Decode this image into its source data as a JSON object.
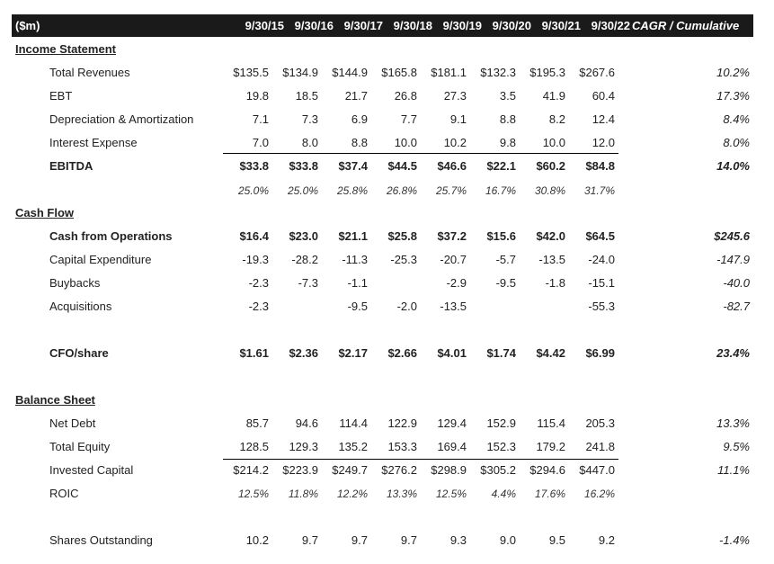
{
  "header": {
    "unit": "($m)",
    "years": [
      "9/30/15",
      "9/30/16",
      "9/30/17",
      "9/30/18",
      "9/30/19",
      "9/30/20",
      "9/30/21",
      "9/30/22"
    ],
    "cagr": "CAGR / Cumulative"
  },
  "rows": [
    {
      "type": "section",
      "label": "Income Statement"
    },
    {
      "label": "Total Revenues",
      "values": [
        "$135.5",
        "$134.9",
        "$144.9",
        "$165.8",
        "$181.1",
        "$132.3",
        "$195.3",
        "$267.6"
      ],
      "cagr": "10.2%"
    },
    {
      "label": "EBT",
      "values": [
        "19.8",
        "18.5",
        "21.7",
        "26.8",
        "27.3",
        "3.5",
        "41.9",
        "60.4"
      ],
      "cagr": "17.3%"
    },
    {
      "label": "Depreciation & Amortization",
      "values": [
        "7.1",
        "7.3",
        "6.9",
        "7.7",
        "9.1",
        "8.8",
        "8.2",
        "12.4"
      ],
      "cagr": "8.4%"
    },
    {
      "label": "Interest Expense",
      "values": [
        "7.0",
        "8.0",
        "8.8",
        "10.0",
        "10.2",
        "9.8",
        "10.0",
        "12.0"
      ],
      "cagr": "8.0%"
    },
    {
      "label": "EBITDA",
      "values": [
        "$33.8",
        "$33.8",
        "$37.4",
        "$44.5",
        "$46.6",
        "$22.1",
        "$60.2",
        "$84.8"
      ],
      "cagr": "14.0%",
      "style": "bold"
    },
    {
      "label": "",
      "values": [
        "25.0%",
        "25.0%",
        "25.8%",
        "26.8%",
        "25.7%",
        "16.7%",
        "30.8%",
        "31.7%"
      ],
      "cagr": "",
      "style": "italic"
    },
    {
      "type": "section",
      "label": "Cash Flow"
    },
    {
      "label": "Cash from Operations",
      "values": [
        "$16.4",
        "$23.0",
        "$21.1",
        "$25.8",
        "$37.2",
        "$15.6",
        "$42.0",
        "$64.5"
      ],
      "cagr": "$245.6",
      "style": "bold"
    },
    {
      "label": "Capital Expenditure",
      "values": [
        "-19.3",
        "-28.2",
        "-11.3",
        "-25.3",
        "-20.7",
        "-5.7",
        "-13.5",
        "-24.0"
      ],
      "cagr": "-147.9"
    },
    {
      "label": "Buybacks",
      "values": [
        "-2.3",
        "-7.3",
        "-1.1",
        "",
        "-2.9",
        "-9.5",
        "-1.8",
        "-15.1"
      ],
      "cagr": "-40.0"
    },
    {
      "label": "Acquisitions",
      "values": [
        "-2.3",
        "",
        "-9.5",
        "-2.0",
        "-13.5",
        "",
        "",
        "-55.3"
      ],
      "cagr": "-82.7"
    },
    {
      "type": "spacer"
    },
    {
      "label": "CFO/share",
      "values": [
        "$1.61",
        "$2.36",
        "$2.17",
        "$2.66",
        "$4.01",
        "$1.74",
        "$4.42",
        "$6.99"
      ],
      "cagr": "23.4%",
      "style": "bold"
    },
    {
      "type": "spacer"
    },
    {
      "type": "section",
      "label": "Balance Sheet"
    },
    {
      "label": "Net Debt",
      "values": [
        "85.7",
        "94.6",
        "114.4",
        "122.9",
        "129.4",
        "152.9",
        "115.4",
        "205.3"
      ],
      "cagr": "13.3%"
    },
    {
      "label": "Total Equity",
      "values": [
        "128.5",
        "129.3",
        "135.2",
        "153.3",
        "169.4",
        "152.3",
        "179.2",
        "241.8"
      ],
      "cagr": "9.5%"
    },
    {
      "label": "Invested Capital",
      "values": [
        "$214.2",
        "$223.9",
        "$249.7",
        "$276.2",
        "$298.9",
        "$305.2",
        "$294.6",
        "$447.0"
      ],
      "cagr": "11.1%"
    },
    {
      "label": "ROIC",
      "values": [
        "12.5%",
        "11.8%",
        "12.2%",
        "13.3%",
        "12.5%",
        "4.4%",
        "17.6%",
        "16.2%"
      ],
      "cagr": "",
      "style": "italic"
    },
    {
      "type": "spacer"
    },
    {
      "label": "Shares Outstanding",
      "values": [
        "10.2",
        "9.7",
        "9.7",
        "9.7",
        "9.3",
        "9.0",
        "9.5",
        "9.2"
      ],
      "cagr": "-1.4%"
    }
  ]
}
